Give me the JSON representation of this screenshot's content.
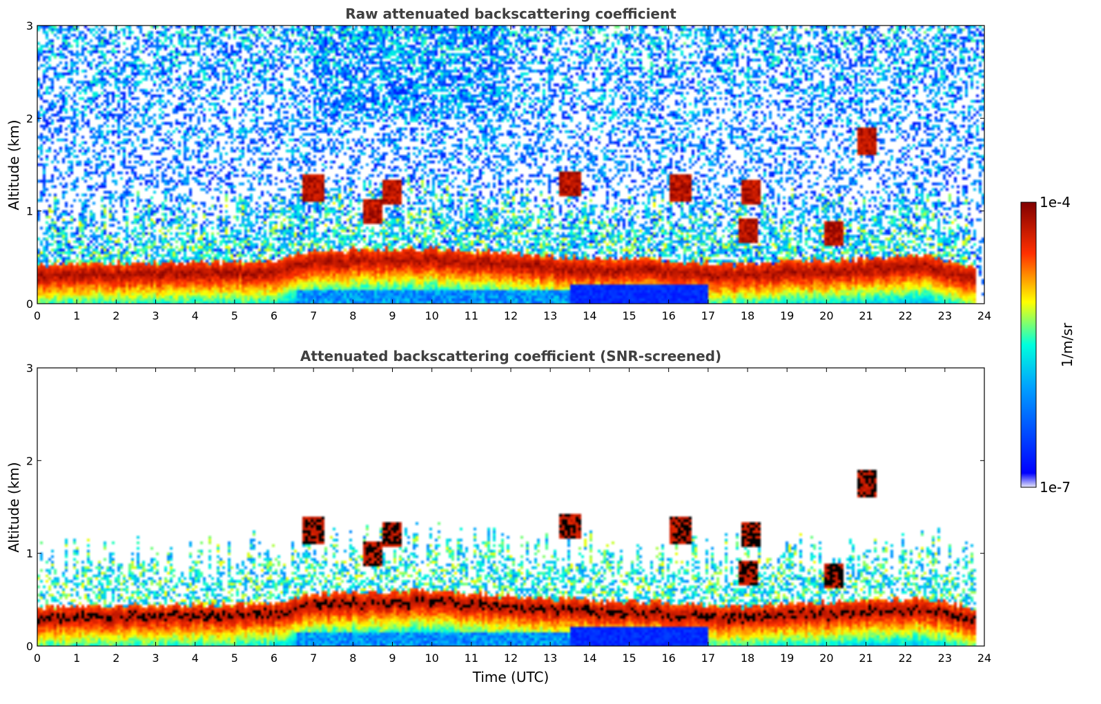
{
  "chart_data": [
    {
      "type": "heatmap",
      "title": "Raw attenuated backscattering coefficient",
      "xlabel": "",
      "ylabel": "Altitude (km)",
      "xlim": [
        0,
        24
      ],
      "ylim": [
        0,
        3
      ],
      "xticks": [
        "0",
        "1",
        "2",
        "3",
        "4",
        "5",
        "6",
        "7",
        "8",
        "9",
        "10",
        "11",
        "12",
        "13",
        "14",
        "15",
        "16",
        "17",
        "18",
        "19",
        "20",
        "21",
        "22",
        "23",
        "24"
      ],
      "yticks": [
        "0",
        "1",
        "2",
        "3"
      ],
      "screened": false,
      "boundary_layer_top_km": [
        {
          "t": 0,
          "z": 0.3
        },
        {
          "t": 3,
          "z": 0.32
        },
        {
          "t": 6,
          "z": 0.34
        },
        {
          "t": 7,
          "z": 0.45
        },
        {
          "t": 10,
          "z": 0.48
        },
        {
          "t": 12,
          "z": 0.42
        },
        {
          "t": 13.5,
          "z": 0.38
        },
        {
          "t": 16,
          "z": 0.35
        },
        {
          "t": 17.5,
          "z": 0.3
        },
        {
          "t": 20,
          "z": 0.35
        },
        {
          "t": 22.5,
          "z": 0.4
        },
        {
          "t": 23.8,
          "z": 0.28
        }
      ],
      "cloud_features": [
        {
          "t": 7.0,
          "z": 1.25
        },
        {
          "t": 8.5,
          "z": 1.0
        },
        {
          "t": 9.0,
          "z": 1.2
        },
        {
          "t": 13.5,
          "z": 1.3
        },
        {
          "t": 16.3,
          "z": 1.25
        },
        {
          "t": 18.1,
          "z": 1.2
        },
        {
          "t": 21.0,
          "z": 1.75
        },
        {
          "t": 18.0,
          "z": 0.78
        },
        {
          "t": 20.2,
          "z": 0.75
        }
      ]
    },
    {
      "type": "heatmap",
      "title": "Attenuated backscattering coefficient (SNR-screened)",
      "xlabel": "Time (UTC)",
      "ylabel": "Altitude (km)",
      "xlim": [
        0,
        24
      ],
      "ylim": [
        0,
        3
      ],
      "xticks": [
        "0",
        "1",
        "2",
        "3",
        "4",
        "5",
        "6",
        "7",
        "8",
        "9",
        "10",
        "11",
        "12",
        "13",
        "14",
        "15",
        "16",
        "17",
        "18",
        "19",
        "20",
        "21",
        "22",
        "23",
        "24"
      ],
      "yticks": [
        "0",
        "1",
        "2",
        "3"
      ],
      "screened": true,
      "boundary_layer_top_km": [
        {
          "t": 0,
          "z": 0.3
        },
        {
          "t": 3,
          "z": 0.32
        },
        {
          "t": 6,
          "z": 0.34
        },
        {
          "t": 7,
          "z": 0.45
        },
        {
          "t": 10,
          "z": 0.48
        },
        {
          "t": 12,
          "z": 0.42
        },
        {
          "t": 13.5,
          "z": 0.38
        },
        {
          "t": 16,
          "z": 0.35
        },
        {
          "t": 17.5,
          "z": 0.3
        },
        {
          "t": 20,
          "z": 0.35
        },
        {
          "t": 22.5,
          "z": 0.4
        },
        {
          "t": 23.8,
          "z": 0.28
        }
      ],
      "cloud_features": [
        {
          "t": 7.0,
          "z": 1.25
        },
        {
          "t": 8.5,
          "z": 1.0
        },
        {
          "t": 9.0,
          "z": 1.2
        },
        {
          "t": 13.5,
          "z": 1.3
        },
        {
          "t": 16.3,
          "z": 1.25
        },
        {
          "t": 18.1,
          "z": 1.2
        },
        {
          "t": 21.0,
          "z": 1.75
        },
        {
          "t": 18.0,
          "z": 0.78
        },
        {
          "t": 20.2,
          "z": 0.75
        }
      ]
    }
  ],
  "colorbar": {
    "label": "1/m/sr",
    "max_label": "1e-4",
    "min_label": "1e-7",
    "scale": "log",
    "colormap": "jet",
    "stops": [
      "#e8e8f8",
      "#0000ff",
      "#00ffff",
      "#ffff00",
      "#ff0000",
      "#800000"
    ]
  }
}
